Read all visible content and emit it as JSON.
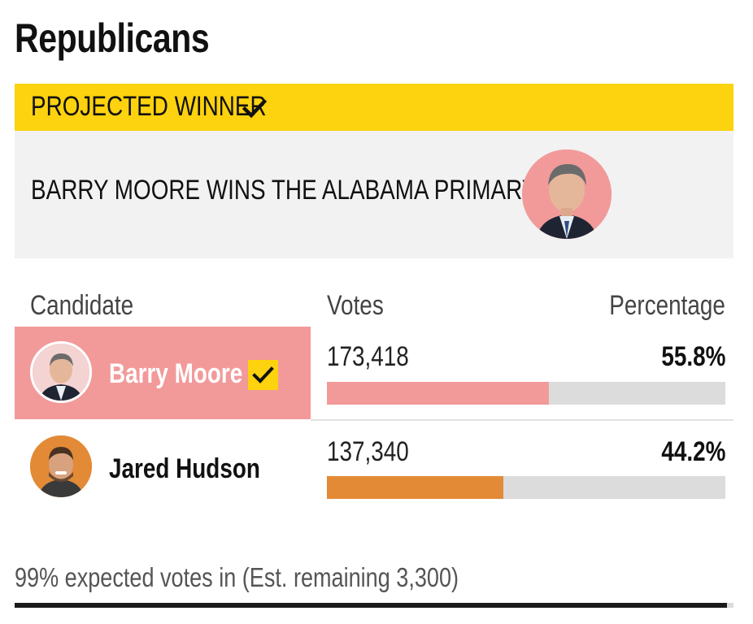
{
  "party_title": "Republicans",
  "banner": {
    "label": "PROJECTED WINNER",
    "icon": "check-icon",
    "color": "#FDD20E"
  },
  "winner_announcement": {
    "text": "BARRY MOORE WINS THE ALABAMA PRIMARY",
    "photo": "barry-moore-headshot"
  },
  "table": {
    "headers": {
      "candidate": "Candidate",
      "votes": "Votes",
      "percentage": "Percentage"
    },
    "rows": [
      {
        "name": "Barry Moore",
        "votes": "173,418",
        "percentage": "55.8%",
        "share": 0.558,
        "winner": true,
        "color": "#F29A9A",
        "photo": "barry-moore-headshot"
      },
      {
        "name": "Jared Hudson",
        "votes": "137,340",
        "percentage": "44.2%",
        "share": 0.442,
        "winner": false,
        "color": "#E28A36",
        "photo": "jared-hudson-headshot"
      }
    ]
  },
  "footer": {
    "status": "99% expected votes in (Est. remaining 3,300)"
  }
}
